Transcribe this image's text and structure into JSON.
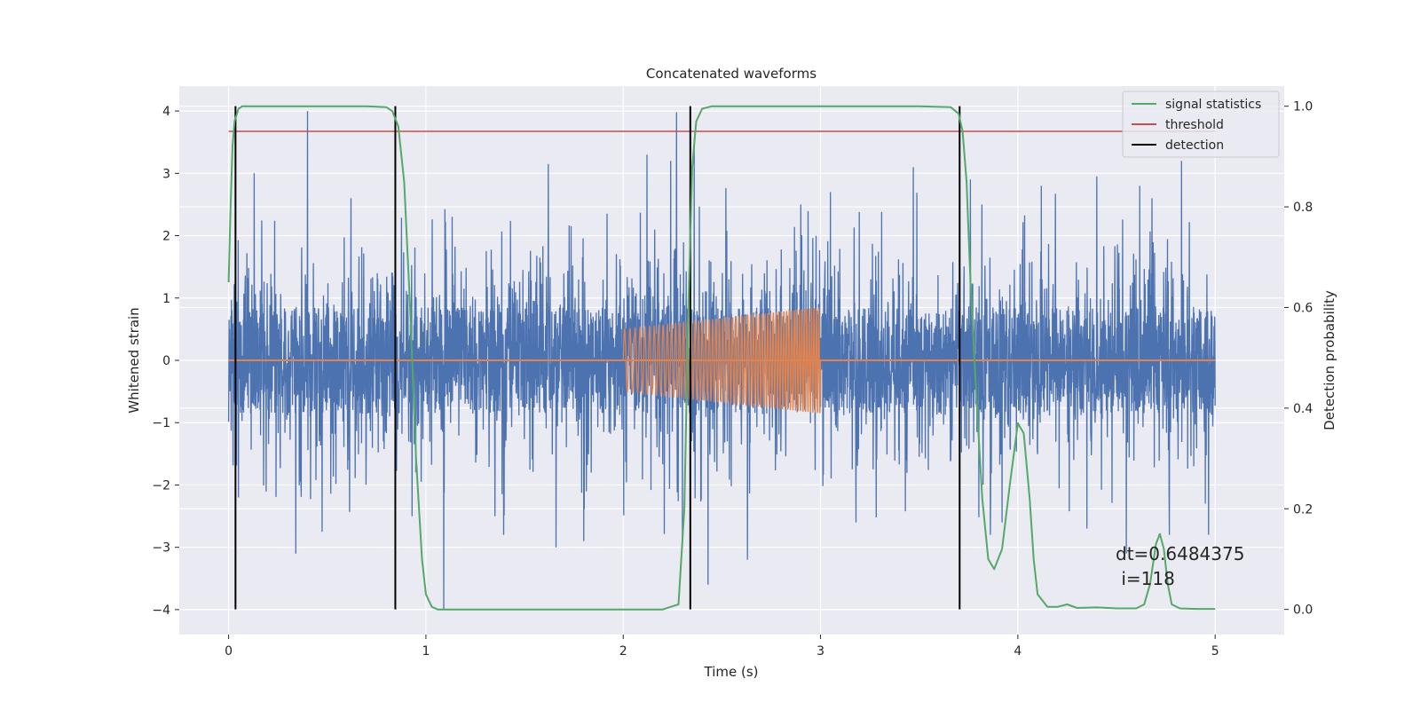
{
  "chart_data": {
    "type": "line",
    "title": "Concatenated waveforms",
    "xlabel": "Time (s)",
    "ylabel": "Whitened strain",
    "y2label": "Detection probability",
    "xlim": [
      -0.25,
      5.35
    ],
    "ylim": [
      -4.4,
      4.4
    ],
    "y2lim": [
      -0.05,
      1.04
    ],
    "xticks": [
      0,
      1,
      2,
      3,
      4,
      5
    ],
    "yticks": [
      -4,
      -3,
      -2,
      -1,
      0,
      1,
      2,
      3,
      4
    ],
    "y2ticks": [
      0.0,
      0.2,
      0.4,
      0.6,
      0.8,
      1.0
    ],
    "xtick_labels": [
      "0",
      "1",
      "2",
      "3",
      "4",
      "5"
    ],
    "ytick_labels": [
      "−4",
      "−3",
      "−2",
      "−1",
      "0",
      "1",
      "2",
      "3",
      "4"
    ],
    "y2tick_labels": [
      "0.0",
      "0.2",
      "0.4",
      "0.6",
      "0.8",
      "1.0"
    ],
    "grid": true,
    "legend_position": "top-right",
    "colors": {
      "background": "#eaeaf2",
      "grid": "#ffffff",
      "strain": "#4c72b0",
      "template": "#dd8452",
      "statistics": "#55a868",
      "threshold": "#c44e52",
      "detection": "#000000"
    },
    "legend": [
      {
        "label": "signal statistics",
        "color": "#55a868"
      },
      {
        "label": "threshold",
        "color": "#c44e52"
      },
      {
        "label": "detection",
        "color": "#000000"
      }
    ],
    "series": [
      {
        "name": "strain",
        "axis": "left",
        "kind": "noise",
        "x_range": [
          0,
          5
        ],
        "core_amplitude": 0.85,
        "spikes": [
          {
            "x": 0.4,
            "y": 4.0
          },
          {
            "x": 1.09,
            "y": -4.0
          },
          {
            "x": 2.27,
            "y": 3.98
          },
          {
            "x": 0.34,
            "y": -3.1
          },
          {
            "x": 2.12,
            "y": 3.3
          },
          {
            "x": 2.36,
            "y": 3.55
          },
          {
            "x": 2.24,
            "y": 3.2
          },
          {
            "x": 4.83,
            "y": 3.2
          },
          {
            "x": 2.43,
            "y": -3.6
          },
          {
            "x": 0.13,
            "y": 3.0
          },
          {
            "x": 1.62,
            "y": 3.15
          },
          {
            "x": 1.66,
            "y": -3.0
          },
          {
            "x": 2.63,
            "y": -3.2
          },
          {
            "x": 4.55,
            "y": -3.1
          },
          {
            "x": 2.3,
            "y": -3.0
          },
          {
            "x": 3.47,
            "y": 3.1
          },
          {
            "x": 3.76,
            "y": 2.9
          },
          {
            "x": 4.4,
            "y": 2.95
          },
          {
            "x": 1.8,
            "y": -2.9
          },
          {
            "x": 4.35,
            "y": -2.7
          },
          {
            "x": 0.05,
            "y": -2.2
          },
          {
            "x": 0.93,
            "y": -2.5
          },
          {
            "x": 3.05,
            "y": 2.7
          },
          {
            "x": 3.18,
            "y": -2.6
          },
          {
            "x": 0.62,
            "y": 2.6
          },
          {
            "x": 1.35,
            "y": -2.5
          },
          {
            "x": 2.9,
            "y": 2.5
          },
          {
            "x": 3.92,
            "y": -2.6
          },
          {
            "x": 4.68,
            "y": 2.6
          },
          {
            "x": 4.95,
            "y": -2.3
          }
        ]
      },
      {
        "name": "injected signal",
        "axis": "left",
        "kind": "chirp",
        "x_range": [
          2.0,
          3.0
        ],
        "amplitude_start": 0.5,
        "amplitude_end": 0.85,
        "cycles": 60,
        "baseline": 0
      },
      {
        "name": "signal statistics",
        "axis": "right",
        "kind": "line",
        "x": [
          0.0,
          0.01,
          0.02,
          0.03,
          0.05,
          0.07,
          0.1,
          0.4,
          0.7,
          0.8,
          0.83,
          0.86,
          0.89,
          0.92,
          0.95,
          0.98,
          1.0,
          1.03,
          1.06,
          1.1,
          2.2,
          2.28,
          2.31,
          2.33,
          2.35,
          2.37,
          2.4,
          2.45,
          3.0,
          3.5,
          3.66,
          3.7,
          3.72,
          3.74,
          3.76,
          3.79,
          3.82,
          3.85,
          3.88,
          3.92,
          3.96,
          4.0,
          4.03,
          4.06,
          4.08,
          4.1,
          4.15,
          4.2,
          4.25,
          4.3,
          4.4,
          4.5,
          4.6,
          4.64,
          4.67,
          4.7,
          4.72,
          4.74,
          4.76,
          4.78,
          4.82,
          4.9,
          5.0
        ],
        "values": [
          0.65,
          0.8,
          0.92,
          0.97,
          0.995,
          1.0,
          1.0,
          1.0,
          1.0,
          0.998,
          0.99,
          0.96,
          0.85,
          0.6,
          0.3,
          0.1,
          0.03,
          0.005,
          0.0,
          0.0,
          0.0,
          0.01,
          0.2,
          0.6,
          0.88,
          0.97,
          0.995,
          1.0,
          1.0,
          1.0,
          0.998,
          0.985,
          0.95,
          0.85,
          0.65,
          0.42,
          0.22,
          0.1,
          0.08,
          0.12,
          0.25,
          0.37,
          0.35,
          0.22,
          0.1,
          0.03,
          0.005,
          0.005,
          0.01,
          0.003,
          0.004,
          0.002,
          0.002,
          0.01,
          0.05,
          0.13,
          0.15,
          0.12,
          0.05,
          0.01,
          0.002,
          0.001,
          0.001
        ]
      },
      {
        "name": "threshold",
        "axis": "right",
        "kind": "hline",
        "x_range": [
          0,
          5
        ],
        "value": 0.95
      },
      {
        "name": "detection",
        "axis": "right",
        "kind": "vlines",
        "x": [
          0.035,
          0.845,
          2.34,
          3.705
        ],
        "range": [
          0.0,
          1.0
        ]
      }
    ],
    "annotation": {
      "line1": "dt=0.6484375",
      "line2": " i=118"
    }
  }
}
